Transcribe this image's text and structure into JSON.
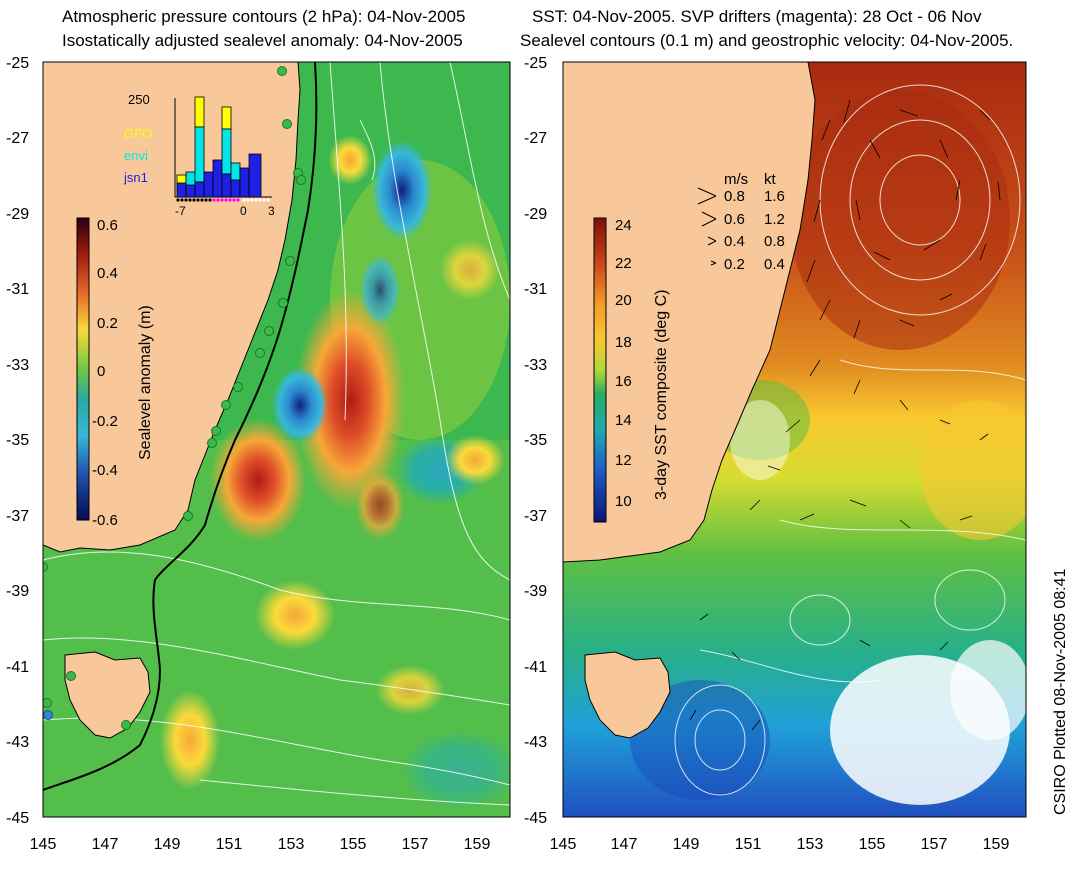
{
  "left_panel": {
    "title_line1": "Atmospheric pressure contours (2 hPa): 04-Nov-2005",
    "title_line2": "Isostatically adjusted sealevel anomaly: 04-Nov-2005",
    "colorbar": {
      "label": "Sealevel anomaly (m)",
      "ticks": [
        "0.6",
        "0.4",
        "0.2",
        "0",
        "-0.2",
        "-0.4",
        "-0.6"
      ],
      "colors": [
        "#2a0010",
        "#7a1a10",
        "#c8301c",
        "#e86a28",
        "#f6a838",
        "#fada3a",
        "#e6f040",
        "#b8e040",
        "#6ec844",
        "#3cb84e",
        "#2aa8a0",
        "#38b8d8",
        "#2a88d0",
        "#2050b0",
        "#102080",
        "#060c50"
      ]
    },
    "inset": {
      "ymax_label": "250",
      "legend": [
        {
          "label": "GFO",
          "color": "#ffff00"
        },
        {
          "label": "envi",
          "color": "#00e6e6"
        },
        {
          "label": "jsn1",
          "color": "#2020e0"
        }
      ],
      "x_ticks": [
        "-7",
        "0",
        "3"
      ]
    }
  },
  "right_panel": {
    "title_line1": "SST: 04-Nov-2005. SVP drifters (magenta): 28 Oct - 06 Nov",
    "title_line2": "Sealevel contours (0.1 m) and geostrophic velocity: 04-Nov-2005.",
    "colorbar": {
      "label": "3-day SST composite (deg C)",
      "ticks": [
        "24",
        "22",
        "20",
        "18",
        "16",
        "14",
        "12",
        "10"
      ],
      "colors": [
        "#7a1008",
        "#a82010",
        "#c84018",
        "#e06a20",
        "#f29a2a",
        "#f8c830",
        "#e8e030",
        "#b0d838",
        "#60c040",
        "#28b060",
        "#20a8a0",
        "#20a0d8",
        "#2060c8",
        "#1830a0",
        "#0c1478"
      ]
    },
    "velocity_legend": {
      "header": [
        "m/s",
        "kt"
      ],
      "rows": [
        [
          "0.8",
          "1.6"
        ],
        [
          "0.6",
          "1.2"
        ],
        [
          "0.4",
          "0.8"
        ],
        [
          "0.2",
          "0.4"
        ]
      ]
    }
  },
  "axes": {
    "x_ticks": [
      "145",
      "147",
      "149",
      "151",
      "153",
      "155",
      "157",
      "159"
    ],
    "y_ticks": [
      "-25",
      "-27",
      "-29",
      "-31",
      "-33",
      "-35",
      "-37",
      "-39",
      "-41",
      "-43",
      "-45"
    ]
  },
  "stamp": "CSIRO Plotted 08-Nov-2005 08:41",
  "colors": {
    "land": "#f8c89a",
    "sea_green": "#3cb84e",
    "coast": "#000000"
  }
}
